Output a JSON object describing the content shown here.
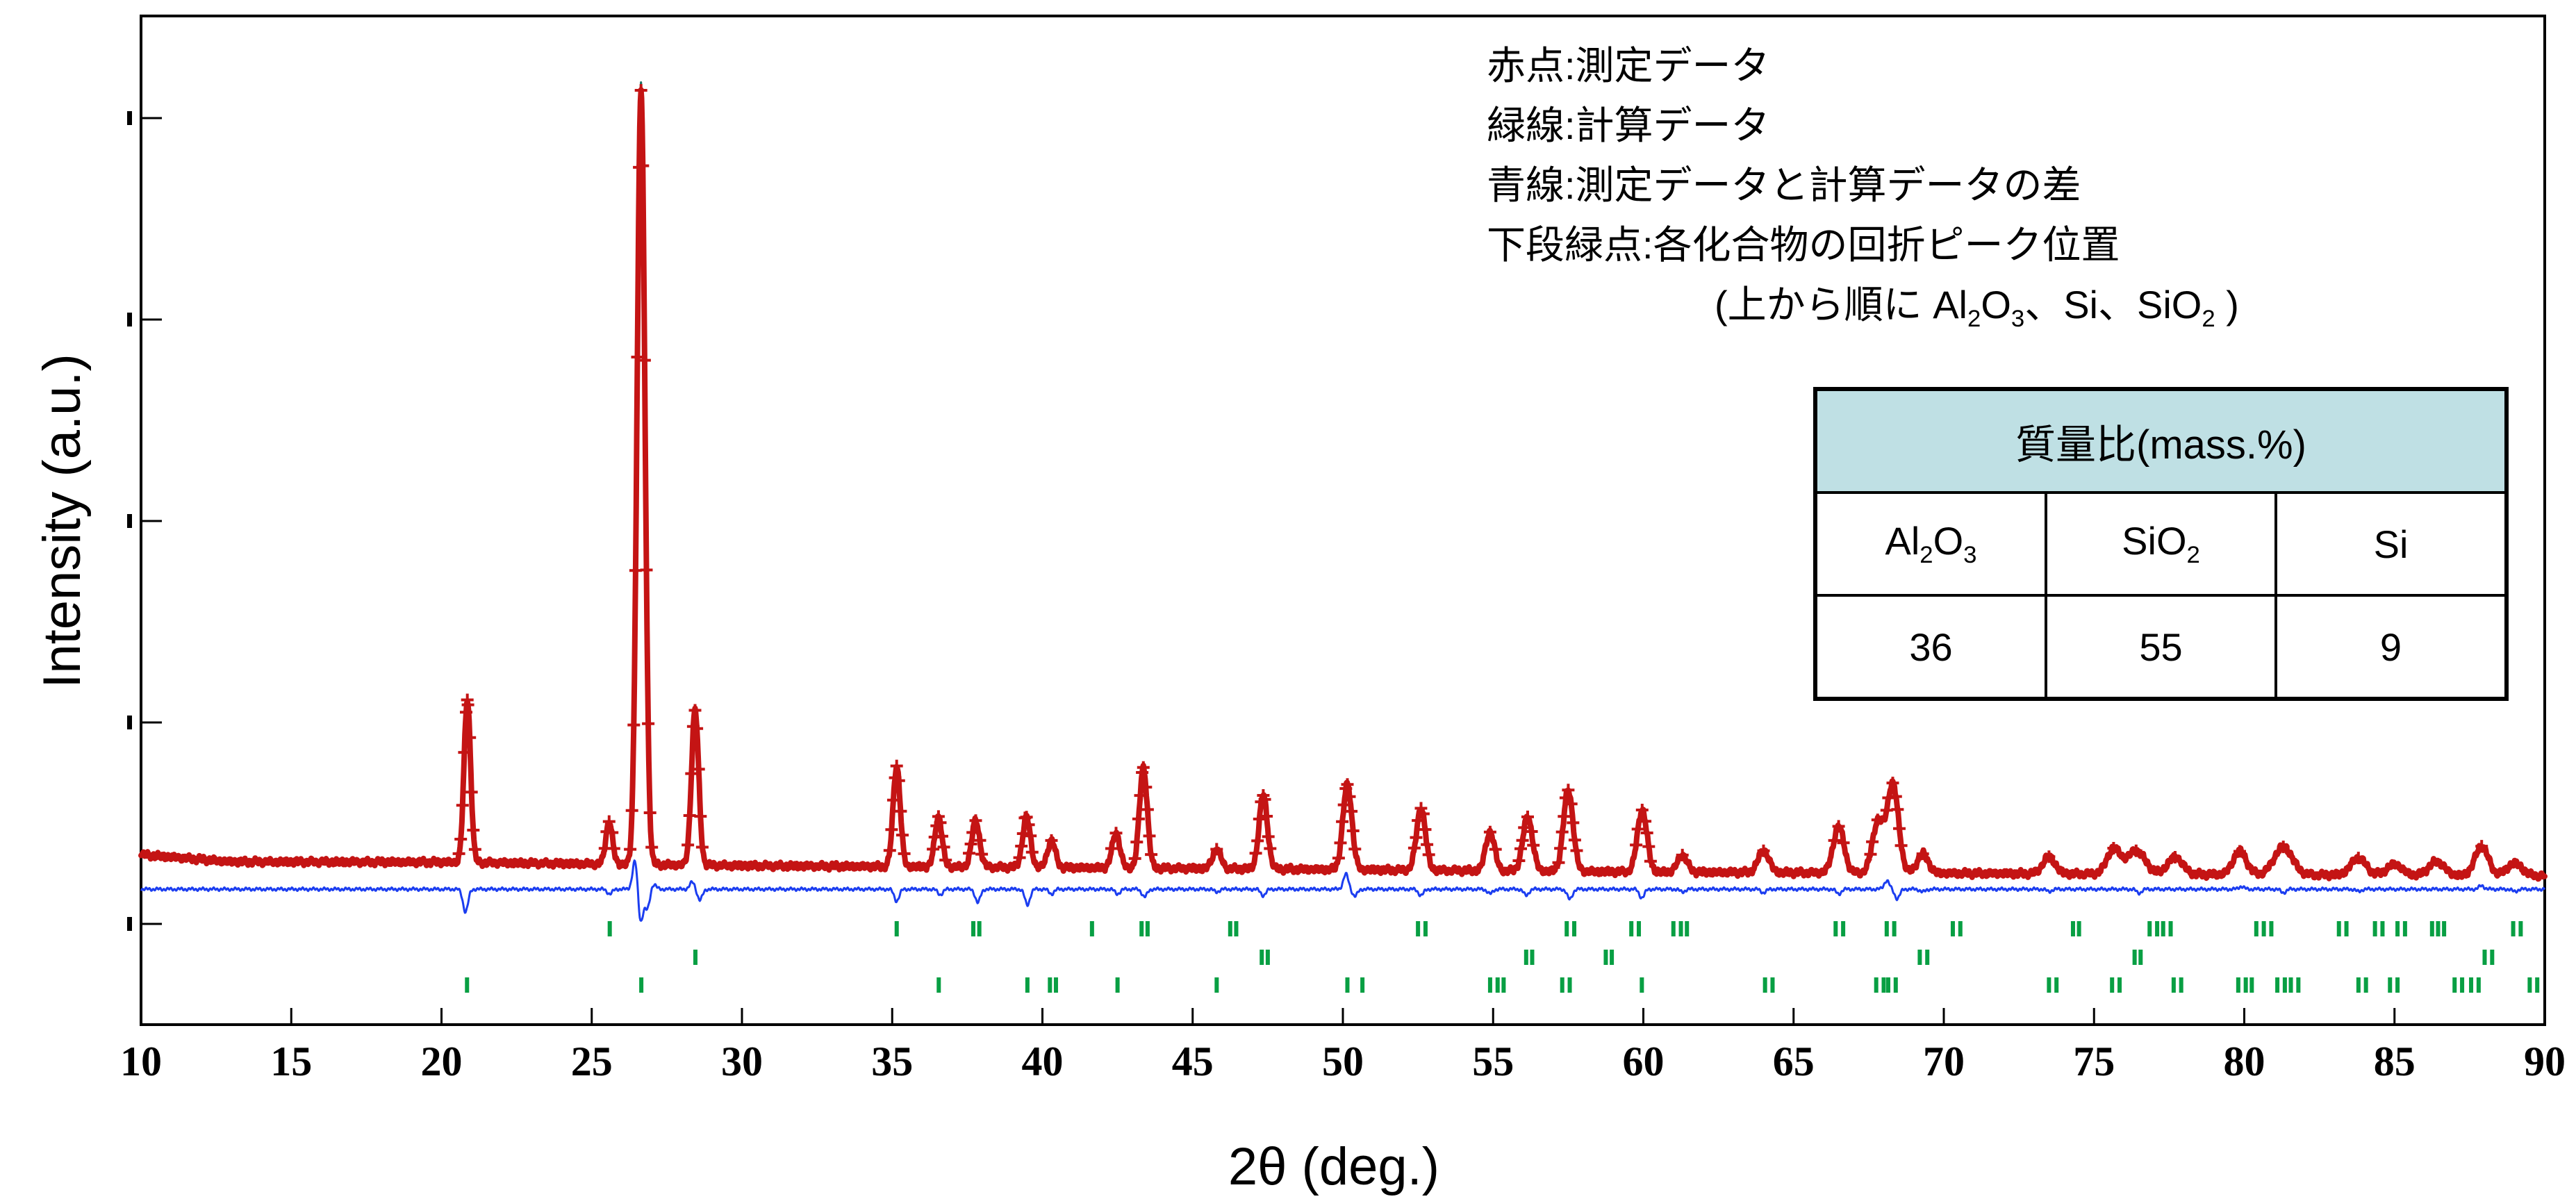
{
  "colors": {
    "measured": "#c41414",
    "calculated": "#156e5f",
    "difference": "#1b3df0",
    "phase_ticks": "#089f43",
    "table_header": "#bfe0e4",
    "axis": "#000000"
  },
  "legend": {
    "lines": [
      "赤点:測定データ",
      "緑線:計算データ",
      "青線:測定データと計算データの差",
      "下段緑点:各化合物の回折ピーク位置",
      "(上から順に Al_2O_3、Si、SiO_2 )"
    ]
  },
  "table": {
    "title": "質量比(mass.%)",
    "columns": [
      "Al_2O_3",
      "SiO_2",
      "Si"
    ],
    "values": [
      "36",
      "55",
      "9"
    ]
  },
  "chart_data": {
    "type": "line",
    "title": "",
    "xlabel": "2θ (deg.)",
    "ylabel": "Intensity (a.u.)",
    "x_range": [
      10,
      90
    ],
    "x_ticks": [
      10,
      15,
      20,
      25,
      30,
      35,
      40,
      45,
      50,
      55,
      60,
      65,
      70,
      75,
      80,
      85,
      90
    ],
    "y_axis_note": "intensity in arbitrary units, 5 unlabeled ticks, grid off",
    "legend_position": "top-right text block",
    "series": [
      {
        "name": "測定データ (measured)",
        "style": "red point markers"
      },
      {
        "name": "計算データ (calculated)",
        "style": "dark green line"
      },
      {
        "name": "測定データと計算データの差 (difference)",
        "style": "blue line, flat baseline below pattern"
      }
    ],
    "peaks_note": "[two_theta_deg, intensity_pct_of_strongest, sigma_deg]; strongest = SiO2(quartz) 101 at 26.64°",
    "peaks": [
      [
        20.86,
        21,
        0.11
      ],
      [
        25.58,
        5.5,
        0.11
      ],
      [
        26.64,
        100,
        0.13
      ],
      [
        28.44,
        20,
        0.12
      ],
      [
        35.15,
        13,
        0.12
      ],
      [
        36.54,
        6.5,
        0.12
      ],
      [
        37.78,
        6,
        0.13
      ],
      [
        39.47,
        6.5,
        0.13
      ],
      [
        40.3,
        3.5,
        0.13
      ],
      [
        42.45,
        4.5,
        0.13
      ],
      [
        43.36,
        13,
        0.13
      ],
      [
        45.8,
        2.5,
        0.14
      ],
      [
        47.35,
        9.5,
        0.14
      ],
      [
        50.15,
        11,
        0.15
      ],
      [
        52.6,
        8,
        0.15
      ],
      [
        54.9,
        5,
        0.15
      ],
      [
        56.15,
        7,
        0.16
      ],
      [
        57.5,
        10.5,
        0.16
      ],
      [
        59.96,
        8,
        0.16
      ],
      [
        61.3,
        2.2,
        0.16
      ],
      [
        64.0,
        2.8,
        0.18
      ],
      [
        66.5,
        6,
        0.18
      ],
      [
        67.8,
        6.5,
        0.18
      ],
      [
        68.3,
        11.5,
        0.19
      ],
      [
        69.3,
        2.5,
        0.18
      ],
      [
        73.5,
        2.2,
        0.2
      ],
      [
        75.65,
        3.2,
        0.22
      ],
      [
        76.4,
        3,
        0.3
      ],
      [
        77.7,
        2.2,
        0.25
      ],
      [
        79.85,
        3,
        0.22
      ],
      [
        81.3,
        3.6,
        0.3
      ],
      [
        83.8,
        2.2,
        0.25
      ],
      [
        85.0,
        1.4,
        0.25
      ],
      [
        86.4,
        1.8,
        0.25
      ],
      [
        87.9,
        3.8,
        0.22
      ],
      [
        89.0,
        1.6,
        0.25
      ]
    ],
    "background_profile_note": "[two_theta_deg, background_intensity_pct] gently sloping down",
    "background_profile": [
      [
        10,
        4.4
      ],
      [
        13,
        3.5
      ],
      [
        20,
        3.45
      ],
      [
        30,
        3.0
      ],
      [
        45,
        2.65
      ],
      [
        60,
        2.2
      ],
      [
        75,
        1.95
      ],
      [
        90,
        1.7
      ]
    ],
    "diff_features_note": "[two_theta_deg, signed_amplitude_pct] of residual excursions around flat blue line",
    "diff_features": [
      [
        20.8,
        -2.9
      ],
      [
        25.6,
        -0.6
      ],
      [
        26.45,
        4.0
      ],
      [
        26.62,
        -4.4
      ],
      [
        26.85,
        -2.5
      ],
      [
        27.05,
        0.7
      ],
      [
        28.35,
        0.9
      ],
      [
        28.6,
        -1.4
      ],
      [
        35.15,
        -1.5
      ],
      [
        36.6,
        -0.7
      ],
      [
        37.85,
        -1.7
      ],
      [
        39.5,
        -2.0
      ],
      [
        40.3,
        -0.6
      ],
      [
        42.5,
        -0.6
      ],
      [
        43.4,
        -1.0
      ],
      [
        45.8,
        -0.35
      ],
      [
        47.35,
        -0.8
      ],
      [
        50.1,
        1.9
      ],
      [
        50.4,
        -0.9
      ],
      [
        52.6,
        -0.8
      ],
      [
        54.9,
        -0.6
      ],
      [
        56.1,
        -0.8
      ],
      [
        57.55,
        -1.3
      ],
      [
        59.95,
        -1.1
      ],
      [
        61.3,
        -0.35
      ],
      [
        64.0,
        -0.45
      ],
      [
        66.5,
        -0.6
      ],
      [
        68.1,
        1.1
      ],
      [
        68.45,
        -1.2
      ],
      [
        69.3,
        -0.35
      ],
      [
        73.5,
        -0.3
      ],
      [
        76.5,
        -0.5
      ],
      [
        79.9,
        0.35
      ],
      [
        81.3,
        -0.45
      ],
      [
        83.8,
        -0.3
      ],
      [
        87.9,
        0.45
      ],
      [
        89.0,
        -0.3
      ]
    ],
    "phase_tick_rows": [
      {
        "phase": "Al2O3",
        "label": "Al_2O_3",
        "positions": [
          25.6,
          35.15,
          37.7,
          37.9,
          41.65,
          43.3,
          43.5,
          46.25,
          46.45,
          52.5,
          52.75,
          57.45,
          57.7,
          59.6,
          59.85,
          61.0,
          61.25,
          61.45,
          66.4,
          66.65,
          68.1,
          68.35,
          70.3,
          70.55,
          74.3,
          74.5,
          76.85,
          77.1,
          77.3,
          77.55,
          80.4,
          80.65,
          80.9,
          83.15,
          83.4,
          84.35,
          84.6,
          85.1,
          85.35,
          86.25,
          86.45,
          86.65,
          88.95,
          89.2
        ]
      },
      {
        "phase": "Si",
        "label": "Si",
        "positions": [
          28.45,
          47.3,
          47.5,
          56.1,
          56.3,
          58.75,
          58.95,
          69.2,
          69.45,
          76.35,
          76.55,
          88.0,
          88.25
        ]
      },
      {
        "phase": "SiO2",
        "label": "SiO_2",
        "positions": [
          20.85,
          26.65,
          36.55,
          39.5,
          40.25,
          40.45,
          42.5,
          45.8,
          50.15,
          50.65,
          54.9,
          55.15,
          55.35,
          57.3,
          57.55,
          59.95,
          64.05,
          64.3,
          67.75,
          68.0,
          68.15,
          68.4,
          73.5,
          73.75,
          75.6,
          75.85,
          77.65,
          77.9,
          79.8,
          80.05,
          80.25,
          81.1,
          81.35,
          81.55,
          81.8,
          83.8,
          84.05,
          84.85,
          85.1,
          87.0,
          87.25,
          87.55,
          87.8,
          89.5,
          89.75
        ]
      }
    ]
  }
}
